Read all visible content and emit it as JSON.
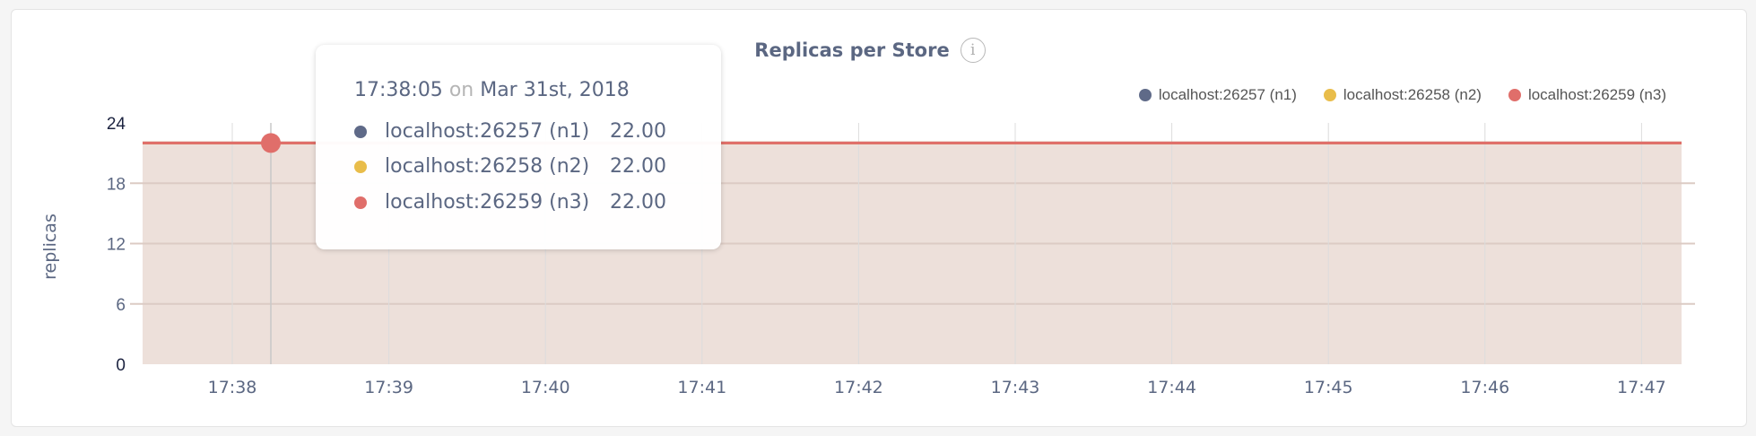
{
  "chart_data": {
    "type": "area",
    "title": "Replicas per Store",
    "ylabel": "replicas",
    "xlabel": "",
    "ylim": [
      0,
      24
    ],
    "yticks": [
      "0",
      "6",
      "12",
      "18",
      "24"
    ],
    "xticks": [
      "17:38",
      "17:39",
      "17:40",
      "17:41",
      "17:42",
      "17:43",
      "17:44",
      "17:45",
      "17:46",
      "17:47"
    ],
    "grid": true,
    "legend_position": "top-right",
    "series": [
      {
        "name": "localhost:26257 (n1)",
        "color": "#5f6a88",
        "value": 22.0
      },
      {
        "name": "localhost:26258 (n2)",
        "color": "#e9bd4a",
        "value": 22.0
      },
      {
        "name": "localhost:26259 (n3)",
        "color": "#e06e6a",
        "value": 22.0
      }
    ]
  },
  "info_icon": "info-icon",
  "tooltip": {
    "time": "17:38:05",
    "on": "on",
    "date": "Mar 31st, 2018",
    "rows": [
      {
        "label": "localhost:26257 (n1)",
        "value": "22.00",
        "color": "#5f6a88"
      },
      {
        "label": "localhost:26258 (n2)",
        "value": "22.00",
        "color": "#e9bd4a"
      },
      {
        "label": "localhost:26259 (n3)",
        "value": "22.00",
        "color": "#e06e6a"
      }
    ]
  }
}
